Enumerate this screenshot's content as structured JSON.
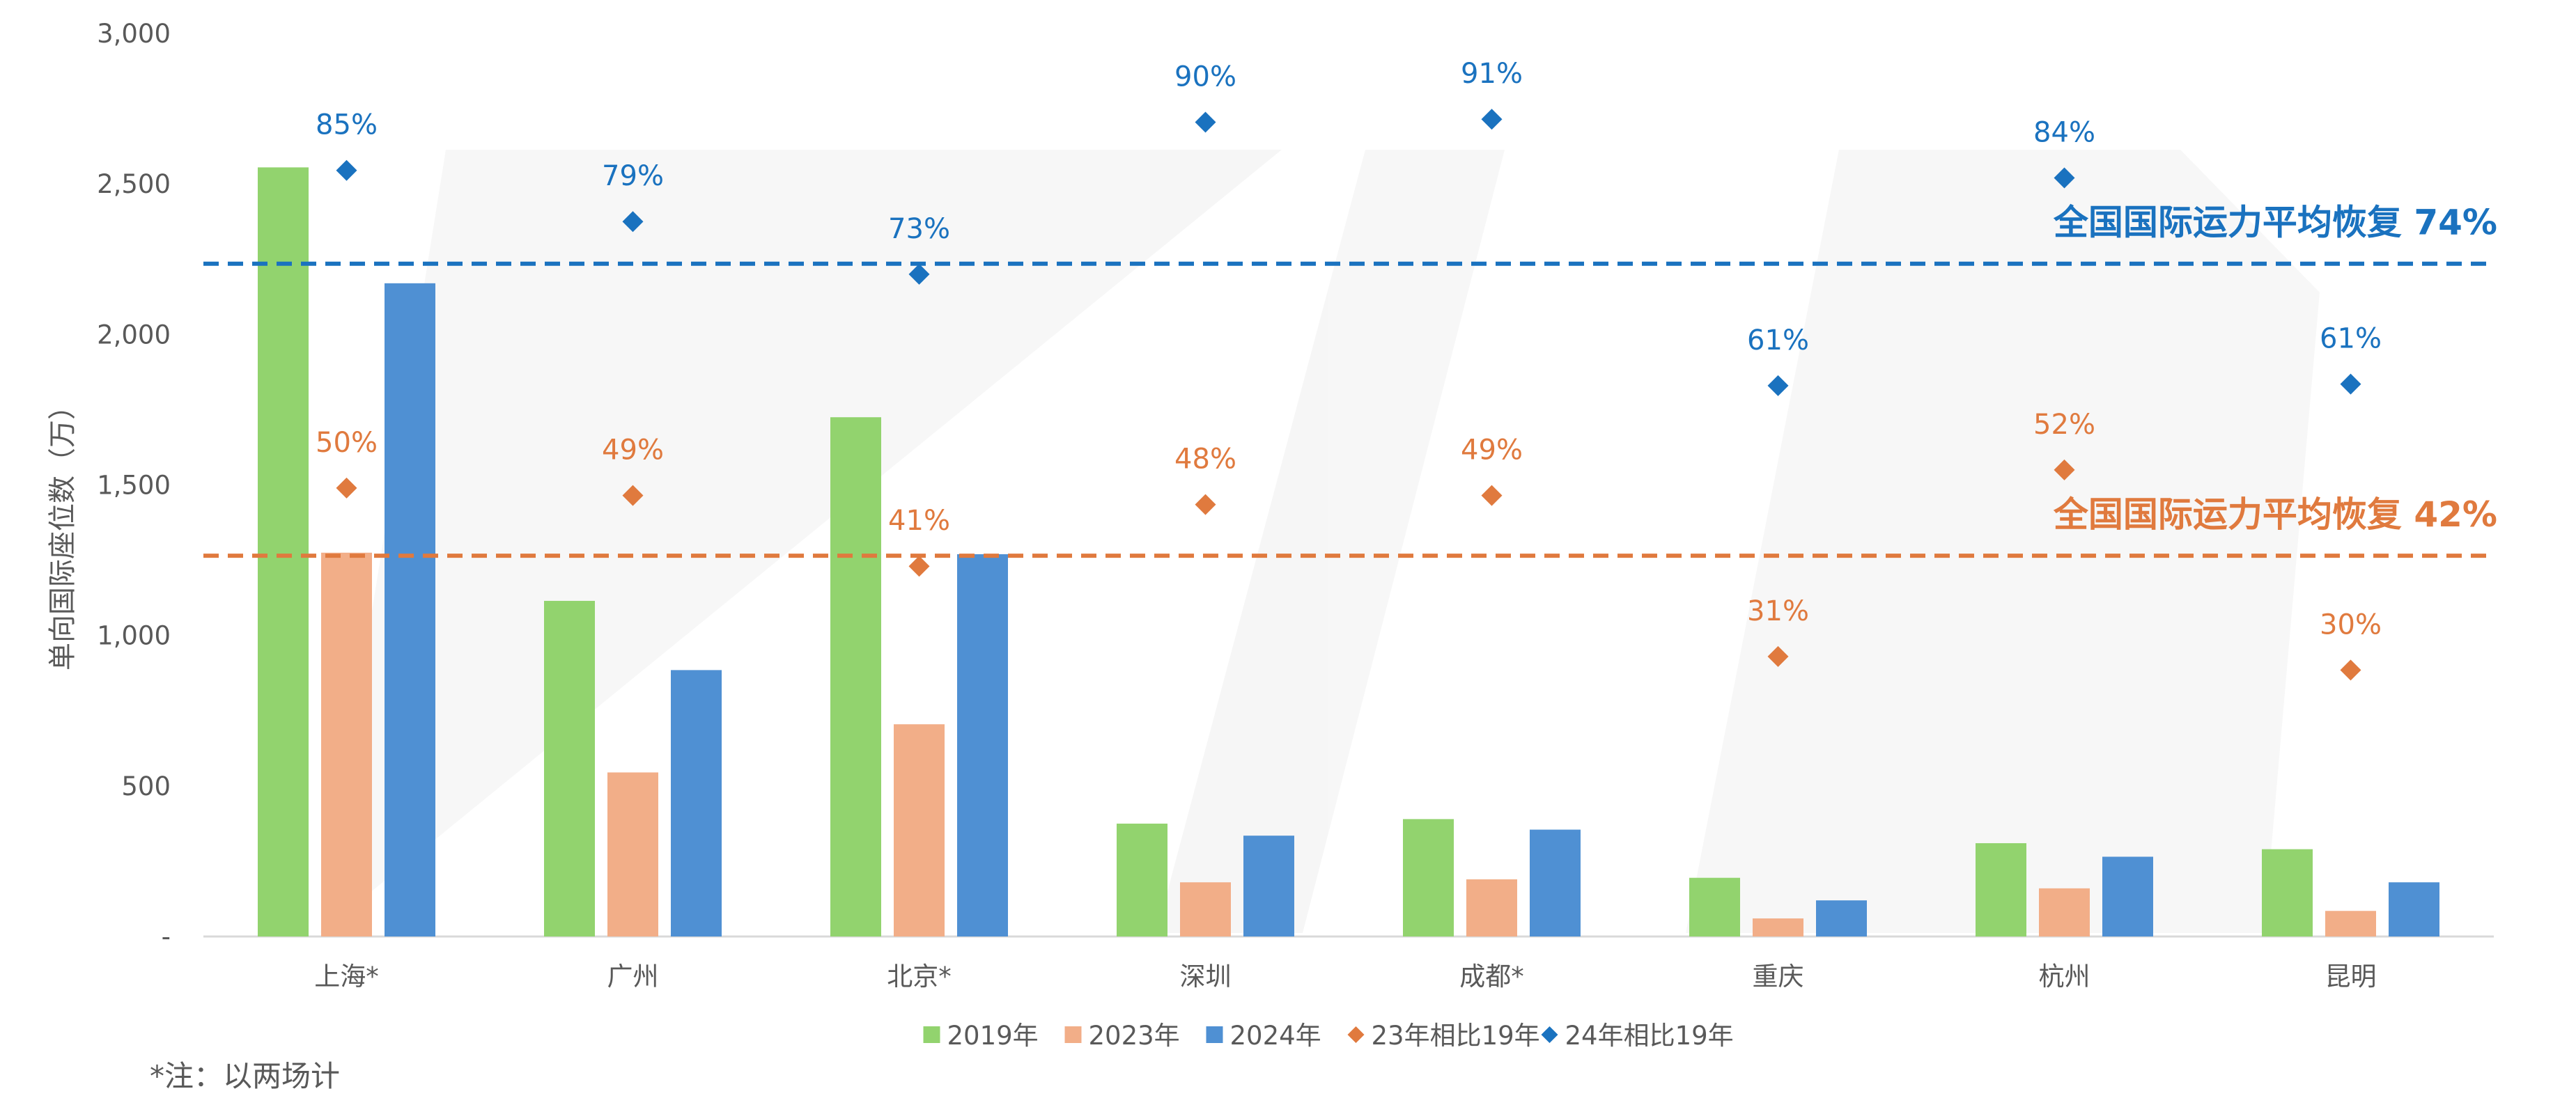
{
  "colors": {
    "s2019": "#92d36e",
    "s2023": "#f2ae88",
    "s2024": "#4f90d3",
    "r23": "#e07a3e",
    "r24": "#1a72bf",
    "axis_text": "#595959",
    "gridline": "#d9d9d9"
  },
  "chart_data": {
    "type": "bar",
    "ylabel": "单向国际座位数（万）",
    "ylim": [
      0,
      3000
    ],
    "yticks": [
      0,
      500,
      1000,
      1500,
      2000,
      2500,
      3000
    ],
    "ytick_labels": [
      "-",
      "500",
      "1,000",
      "1,500",
      "2,000",
      "2,500",
      "3,000"
    ],
    "categories": [
      "上海*",
      "广州",
      "北京*",
      "深圳",
      "成都*",
      "重庆",
      "杭州",
      "昆明"
    ],
    "series": [
      {
        "name": "2019年",
        "kind": "bar",
        "color_key": "s2019",
        "values": [
          2555,
          1115,
          1725,
          375,
          390,
          195,
          310,
          290
        ]
      },
      {
        "name": "2023年",
        "kind": "bar",
        "color_key": "s2023",
        "values": [
          1275,
          545,
          705,
          180,
          190,
          60,
          160,
          85
        ]
      },
      {
        "name": "2024年",
        "kind": "bar",
        "color_key": "s2024",
        "values": [
          2170,
          885,
          1270,
          335,
          355,
          120,
          265,
          180
        ]
      },
      {
        "name": "23年相比19年",
        "kind": "marker",
        "color_key": "r23",
        "values": [
          1490,
          1465,
          1230,
          1435,
          1465,
          930,
          1550,
          885
        ],
        "labels": [
          "50%",
          "49%",
          "41%",
          "48%",
          "49%",
          "31%",
          "52%",
          "30%"
        ]
      },
      {
        "name": "24年相比19年",
        "kind": "marker",
        "color_key": "r24",
        "values": [
          2545,
          2375,
          2200,
          2705,
          2715,
          1830,
          2520,
          1835
        ],
        "labels": [
          "85%",
          "79%",
          "73%",
          "90%",
          "91%",
          "61%",
          "84%",
          "61%"
        ]
      }
    ],
    "reference_lines": [
      {
        "value": 2235,
        "color_key": "r24",
        "label": "全国国际运力平均恢复 74%"
      },
      {
        "value": 1265,
        "color_key": "r23",
        "label": "全国国际运力平均恢复 42%"
      }
    ],
    "legend_position": "bottom",
    "grid": false
  },
  "note": "*注：以两场计"
}
